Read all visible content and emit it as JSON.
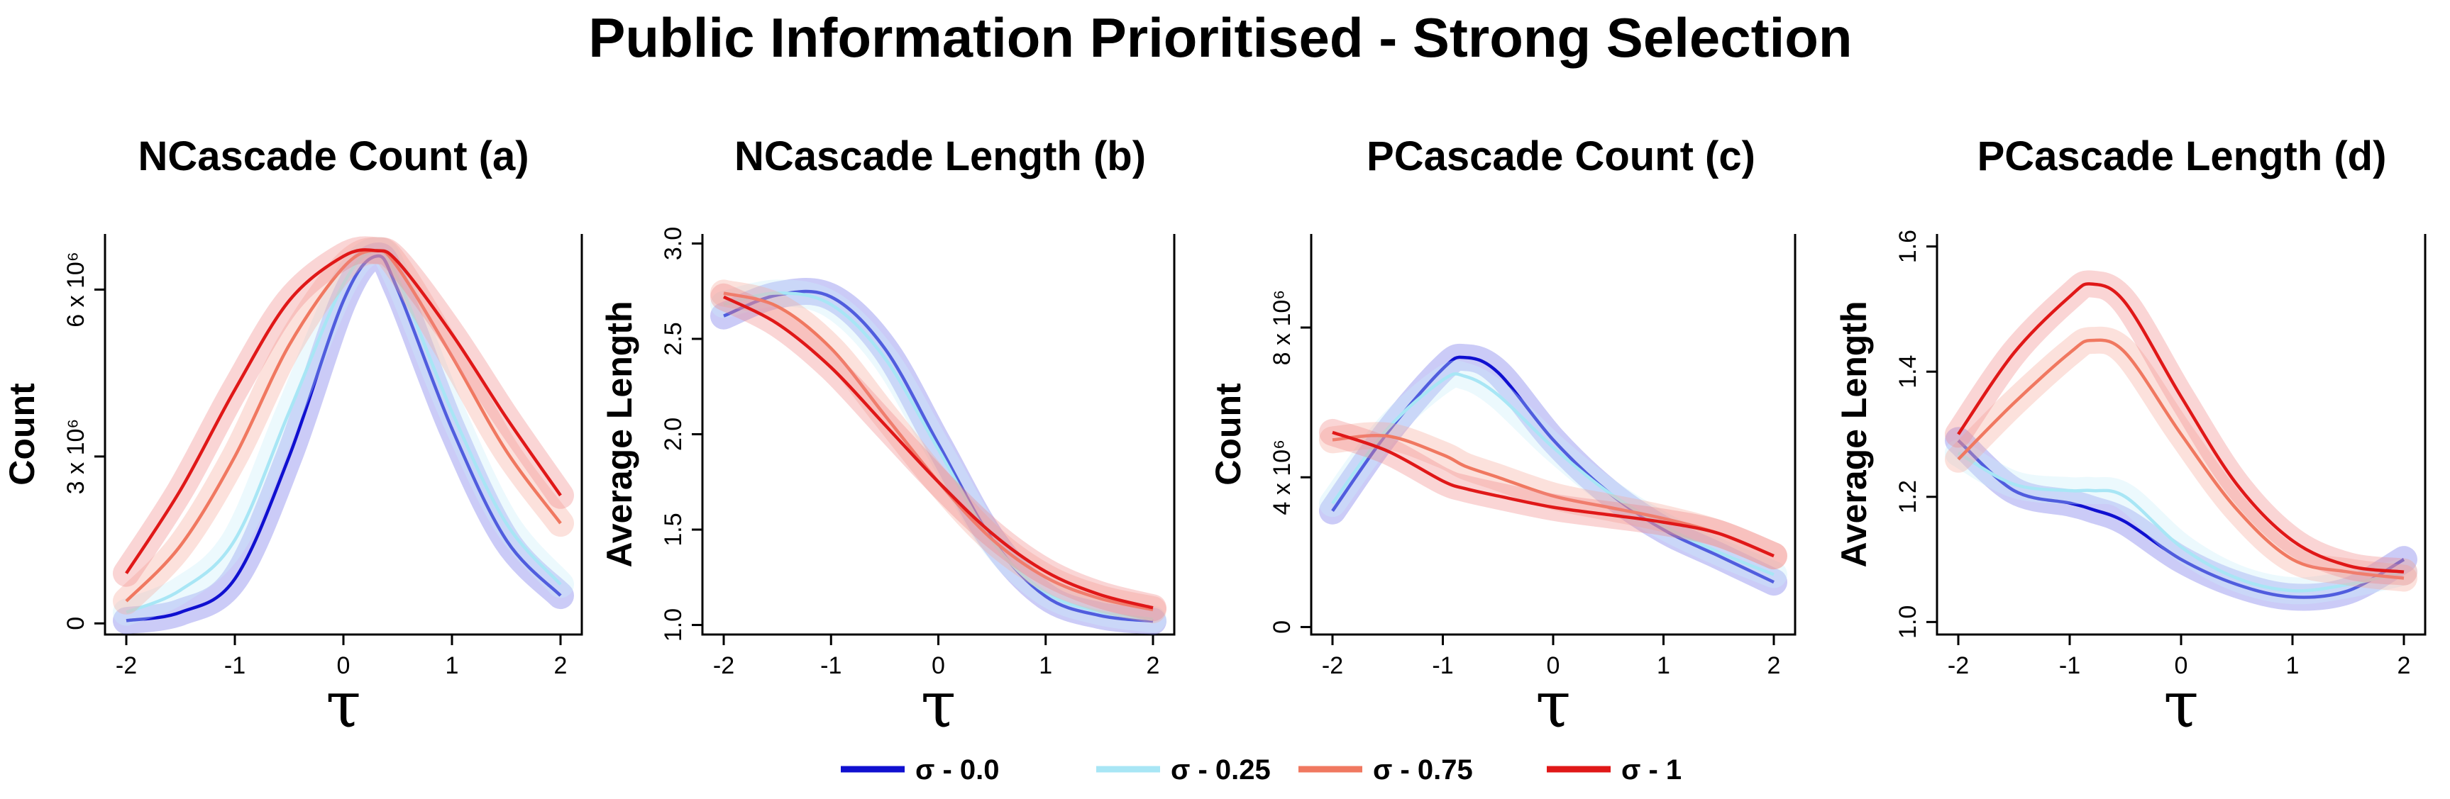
{
  "title": "Public Information Prioritised - Strong Selection",
  "x_axis_symbol": "τ",
  "legend": [
    {
      "label": "σ - 0.0",
      "color": "#1010d0"
    },
    {
      "label": "σ - 0.25",
      "color": "#a8e6f5"
    },
    {
      "label": "σ - 0.75",
      "color": "#f07860"
    },
    {
      "label": "σ - 1",
      "color": "#e01818"
    }
  ],
  "chart_data": [
    {
      "type": "line",
      "title": "NCascade Count (a)",
      "ylabel": "Count",
      "xlabel": "τ",
      "xlim": [
        -2,
        2
      ],
      "ylim": [
        -200000,
        7000000
      ],
      "xticks": [
        "-2",
        "-1",
        "0",
        "1",
        "2"
      ],
      "yticks": [
        {
          "value": 0,
          "label": "0"
        },
        {
          "value": 3000000,
          "label": "3 x 10⁶"
        },
        {
          "value": 6000000,
          "label": "6 x 10⁶"
        }
      ],
      "x": [
        -2,
        -1.5,
        -1,
        -0.5,
        0,
        0.3,
        0.5,
        1,
        1.5,
        2
      ],
      "series": [
        {
          "name": "σ - 0.0",
          "values": [
            50000,
            200000,
            800000,
            3000000,
            5800000,
            6600000,
            6000000,
            3500000,
            1500000,
            500000
          ]
        },
        {
          "name": "σ - 0.25",
          "values": [
            200000,
            600000,
            1500000,
            3800000,
            6100000,
            6700000,
            6200000,
            3800000,
            1800000,
            700000
          ]
        },
        {
          "name": "σ - 0.75",
          "values": [
            400000,
            1400000,
            3000000,
            5000000,
            6400000,
            6700000,
            6400000,
            4800000,
            3100000,
            1800000
          ]
        },
        {
          "name": "σ - 1",
          "values": [
            900000,
            2400000,
            4200000,
            5800000,
            6600000,
            6700000,
            6500000,
            5200000,
            3700000,
            2300000
          ]
        }
      ]
    },
    {
      "type": "line",
      "title": "NCascade Length (b)",
      "ylabel": "Average Length",
      "xlabel": "τ",
      "xlim": [
        -2,
        2
      ],
      "ylim": [
        0.95,
        3.05
      ],
      "xticks": [
        "-2",
        "-1",
        "0",
        "1",
        "2"
      ],
      "yticks": [
        {
          "value": 1.0,
          "label": "1.0"
        },
        {
          "value": 1.5,
          "label": "1.5"
        },
        {
          "value": 2.0,
          "label": "2.0"
        },
        {
          "value": 2.5,
          "label": "2.5"
        },
        {
          "value": 3.0,
          "label": "3.0"
        }
      ],
      "x": [
        -2,
        -1.5,
        -1,
        -0.5,
        0,
        0.5,
        1,
        1.5,
        2
      ],
      "series": [
        {
          "name": "σ - 0.0",
          "values": [
            2.62,
            2.73,
            2.72,
            2.45,
            1.95,
            1.45,
            1.15,
            1.05,
            1.02
          ]
        },
        {
          "name": "σ - 0.25",
          "values": [
            2.68,
            2.74,
            2.68,
            2.4,
            1.92,
            1.44,
            1.17,
            1.07,
            1.03
          ]
        },
        {
          "name": "σ - 0.75",
          "values": [
            2.74,
            2.67,
            2.45,
            2.1,
            1.75,
            1.45,
            1.25,
            1.14,
            1.08
          ]
        },
        {
          "name": "σ - 1",
          "values": [
            2.72,
            2.58,
            2.35,
            2.05,
            1.75,
            1.48,
            1.28,
            1.16,
            1.09
          ]
        }
      ]
    },
    {
      "type": "line",
      "title": "PCascade Count (c)",
      "ylabel": "Count",
      "xlabel": "τ",
      "xlim": [
        -2,
        2
      ],
      "ylim": [
        -200000,
        10500000
      ],
      "xticks": [
        "-2",
        "-1",
        "0",
        "1",
        "2"
      ],
      "yticks": [
        {
          "value": 0,
          "label": "0"
        },
        {
          "value": 4000000,
          "label": "4 x 10⁶"
        },
        {
          "value": 8000000,
          "label": "8 x 10⁶"
        }
      ],
      "x": [
        -2,
        -1.5,
        -1,
        -0.8,
        -0.5,
        0,
        0.5,
        1,
        1.5,
        2
      ],
      "series": [
        {
          "name": "σ - 0.0",
          "values": [
            3100000,
            5200000,
            6900000,
            7200000,
            6800000,
            5000000,
            3600000,
            2600000,
            1900000,
            1200000
          ]
        },
        {
          "name": "σ - 0.25",
          "values": [
            3300000,
            5300000,
            6600000,
            6700000,
            6200000,
            4800000,
            3600000,
            2700000,
            2000000,
            1400000
          ]
        },
        {
          "name": "σ - 0.75",
          "values": [
            5000000,
            5100000,
            4600000,
            4300000,
            4000000,
            3500000,
            3200000,
            2900000,
            2500000,
            1900000
          ]
        },
        {
          "name": "σ - 1",
          "values": [
            5200000,
            4700000,
            3900000,
            3700000,
            3500000,
            3200000,
            3000000,
            2800000,
            2500000,
            1900000
          ]
        }
      ]
    },
    {
      "type": "line",
      "title": "PCascade Length (d)",
      "ylabel": "Average Length",
      "xlabel": "τ",
      "xlim": [
        -2,
        2
      ],
      "ylim": [
        0.98,
        1.62
      ],
      "xticks": [
        "-2",
        "-1",
        "0",
        "1",
        "2"
      ],
      "yticks": [
        {
          "value": 1.0,
          "label": "1.0"
        },
        {
          "value": 1.2,
          "label": "1.2"
        },
        {
          "value": 1.4,
          "label": "1.4"
        },
        {
          "value": 1.6,
          "label": "1.6"
        }
      ],
      "x": [
        -2,
        -1.5,
        -1,
        -0.8,
        -0.5,
        0,
        0.5,
        1,
        1.5,
        2
      ],
      "series": [
        {
          "name": "σ - 0.0",
          "values": [
            1.29,
            1.21,
            1.19,
            1.18,
            1.16,
            1.1,
            1.06,
            1.04,
            1.05,
            1.1
          ]
        },
        {
          "name": "σ - 0.25",
          "values": [
            1.27,
            1.22,
            1.21,
            1.21,
            1.2,
            1.12,
            1.07,
            1.05,
            1.06,
            1.08
          ]
        },
        {
          "name": "σ - 0.75",
          "values": [
            1.26,
            1.35,
            1.43,
            1.45,
            1.43,
            1.3,
            1.18,
            1.1,
            1.08,
            1.07
          ]
        },
        {
          "name": "σ - 1",
          "values": [
            1.3,
            1.43,
            1.52,
            1.54,
            1.51,
            1.36,
            1.22,
            1.13,
            1.09,
            1.08
          ]
        }
      ]
    }
  ]
}
